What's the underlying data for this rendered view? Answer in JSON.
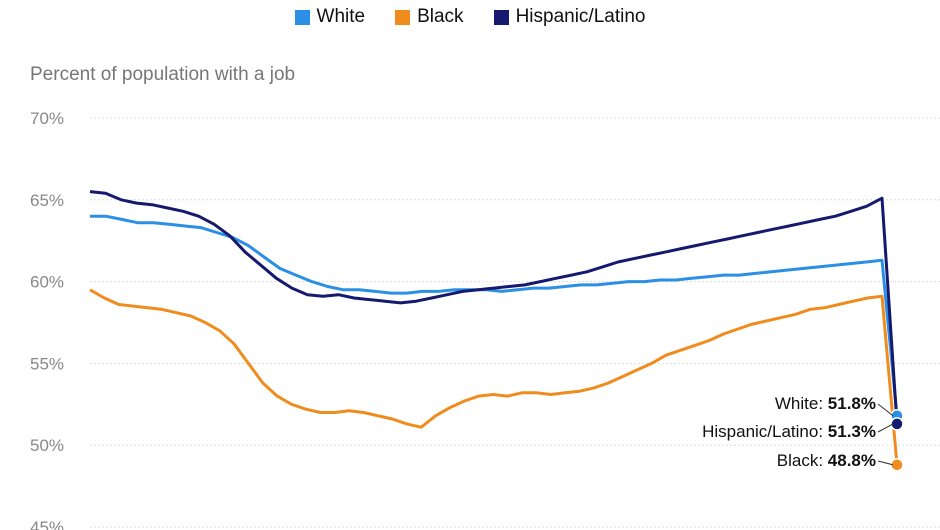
{
  "legend": [
    {
      "label": "White",
      "color": "#2b8fe6"
    },
    {
      "label": "Black",
      "color": "#f08c1e"
    },
    {
      "label": "Hispanic/Latino",
      "color": "#161a6e"
    }
  ],
  "chart_data": {
    "type": "line",
    "title": "",
    "xlabel": "",
    "ylabel": "Percent of population with a job",
    "ylim": [
      45,
      70
    ],
    "yticks": [
      70,
      65,
      60,
      55,
      50,
      45
    ],
    "ytick_labels": [
      "70%",
      "65%",
      "60%",
      "55%",
      "50%",
      "45%"
    ],
    "x_note": "monthly observations, no x-axis labels shown",
    "grid": true,
    "legend_position": "top-center",
    "series": [
      {
        "name": "White",
        "color": "#2b8fe6",
        "values": [
          64.0,
          64.0,
          63.8,
          63.6,
          63.6,
          63.5,
          63.4,
          63.3,
          63.0,
          62.7,
          62.2,
          61.5,
          60.8,
          60.4,
          60.0,
          59.7,
          59.5,
          59.5,
          59.4,
          59.3,
          59.3,
          59.4,
          59.4,
          59.5,
          59.5,
          59.5,
          59.4,
          59.5,
          59.6,
          59.6,
          59.7,
          59.8,
          59.8,
          59.9,
          60.0,
          60.0,
          60.1,
          60.1,
          60.2,
          60.3,
          60.4,
          60.4,
          60.5,
          60.6,
          60.7,
          60.8,
          60.9,
          61.0,
          61.1,
          61.2,
          61.3,
          51.8
        ],
        "end_label": "White:",
        "end_value": "51.8%"
      },
      {
        "name": "Black",
        "color": "#f08c1e",
        "values": [
          59.5,
          59.0,
          58.6,
          58.5,
          58.4,
          58.3,
          58.1,
          57.9,
          57.5,
          57.0,
          56.2,
          55.0,
          53.8,
          53.0,
          52.5,
          52.2,
          52.0,
          52.0,
          52.1,
          52.0,
          51.8,
          51.6,
          51.3,
          51.1,
          51.8,
          52.3,
          52.7,
          53.0,
          53.1,
          53.0,
          53.2,
          53.2,
          53.1,
          53.2,
          53.3,
          53.5,
          53.8,
          54.2,
          54.6,
          55.0,
          55.5,
          55.8,
          56.1,
          56.4,
          56.8,
          57.1,
          57.4,
          57.6,
          57.8,
          58.0,
          58.3,
          58.4,
          58.6,
          58.8,
          59.0,
          59.1,
          48.8
        ],
        "end_label": "Black:",
        "end_value": "48.8%"
      },
      {
        "name": "Hispanic/Latino",
        "color": "#161a6e",
        "values": [
          65.5,
          65.4,
          65.0,
          64.8,
          64.7,
          64.5,
          64.3,
          64.0,
          63.5,
          62.8,
          61.8,
          61.0,
          60.2,
          59.6,
          59.2,
          59.1,
          59.2,
          59.0,
          58.9,
          58.8,
          58.7,
          58.8,
          59.0,
          59.2,
          59.4,
          59.5,
          59.6,
          59.7,
          59.8,
          60.0,
          60.2,
          60.4,
          60.6,
          60.9,
          61.2,
          61.4,
          61.6,
          61.8,
          62.0,
          62.2,
          62.4,
          62.6,
          62.8,
          63.0,
          63.2,
          63.4,
          63.6,
          63.8,
          64.0,
          64.3,
          64.6,
          65.1,
          51.3
        ],
        "end_label": "Hispanic/Latino:",
        "end_value": "51.3%"
      }
    ]
  }
}
